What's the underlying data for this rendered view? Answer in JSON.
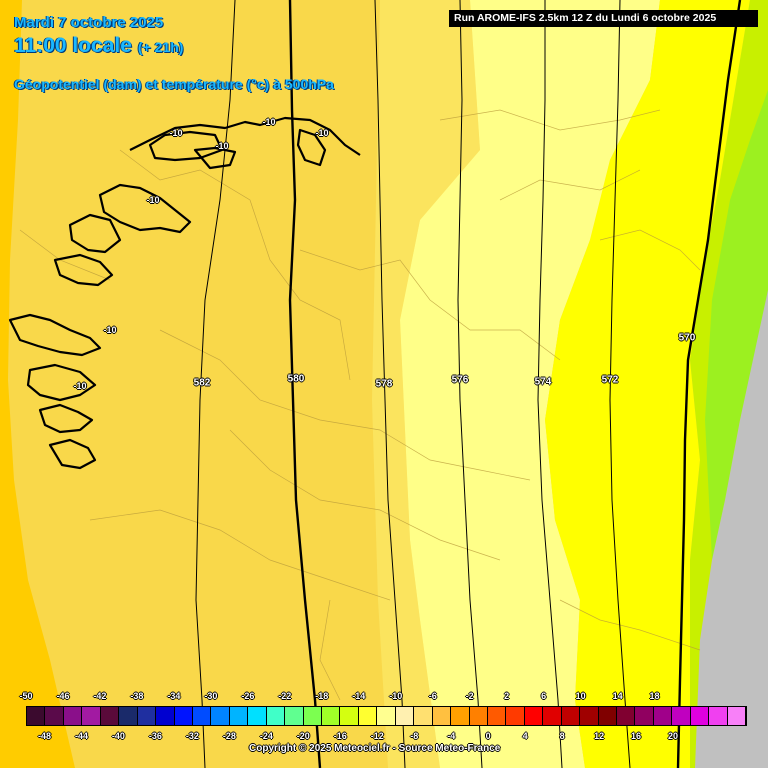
{
  "header": {
    "date": "Mardi 7 octobre 2025",
    "local_time": "11:00 locale",
    "lead_time": "(+ 21h)",
    "field": "Géopotentiel (dam) et température (°c) à 500hPa"
  },
  "run_info": "Run AROME-IFS 2.5km 12 Z du Lundi 6 octobre 2025",
  "geopotential_labels": [
    "582",
    "580",
    "578",
    "576",
    "574",
    "572",
    "570"
  ],
  "temperature_labels": [
    "-10",
    "-10",
    "-10",
    "-10",
    "-10",
    "-10",
    "-10"
  ],
  "legend": {
    "colors": [
      "#3b0a2e",
      "#5a0a4a",
      "#8a0f8a",
      "#a21aa2",
      "#5a0a3a",
      "#1a2a6a",
      "#1f2fa0",
      "#0000d0",
      "#0014ff",
      "#004cff",
      "#0084ff",
      "#00b4ff",
      "#00e0ff",
      "#40ffc8",
      "#60ff90",
      "#7cff50",
      "#a0ff28",
      "#d4ff10",
      "#ffff30",
      "#ffff90",
      "#fff0b0",
      "#ffe070",
      "#ffc040",
      "#ffa000",
      "#ff8000",
      "#ff5a00",
      "#ff3a00",
      "#ff0000",
      "#e00000",
      "#c00000",
      "#a00000",
      "#800000",
      "#800030",
      "#900060",
      "#a0008a",
      "#c000c0",
      "#e000e0",
      "#f040f0",
      "#f880f8"
    ],
    "upper_labels": [
      "-50",
      "-46",
      "-42",
      "-38",
      "-34",
      "-30",
      "-26",
      "-22",
      "-18",
      "-14",
      "-10",
      "-6",
      "-2",
      "2",
      "6",
      "10",
      "14",
      "18"
    ],
    "lower_labels": [
      "-48",
      "-44",
      "-40",
      "-36",
      "-32",
      "-28",
      "-24",
      "-20",
      "-16",
      "-12",
      "-8",
      "-4",
      "0",
      "4",
      "8",
      "12",
      "16",
      "20"
    ]
  },
  "copyright": "Copyright © 2025 Meteociel.fr - Source Meteo-France",
  "colors": {
    "band_orange": "#ffcc00",
    "band_gold": "#f9d84a",
    "band_lightgold": "#fbe45e",
    "band_paleyellow": "#ffff88",
    "band_yellow": "#ffff00",
    "band_lime": "#c8f000",
    "band_green": "#9cf020",
    "outside_domain": "#c0c0c0",
    "header_text": "#1ab8ff"
  }
}
